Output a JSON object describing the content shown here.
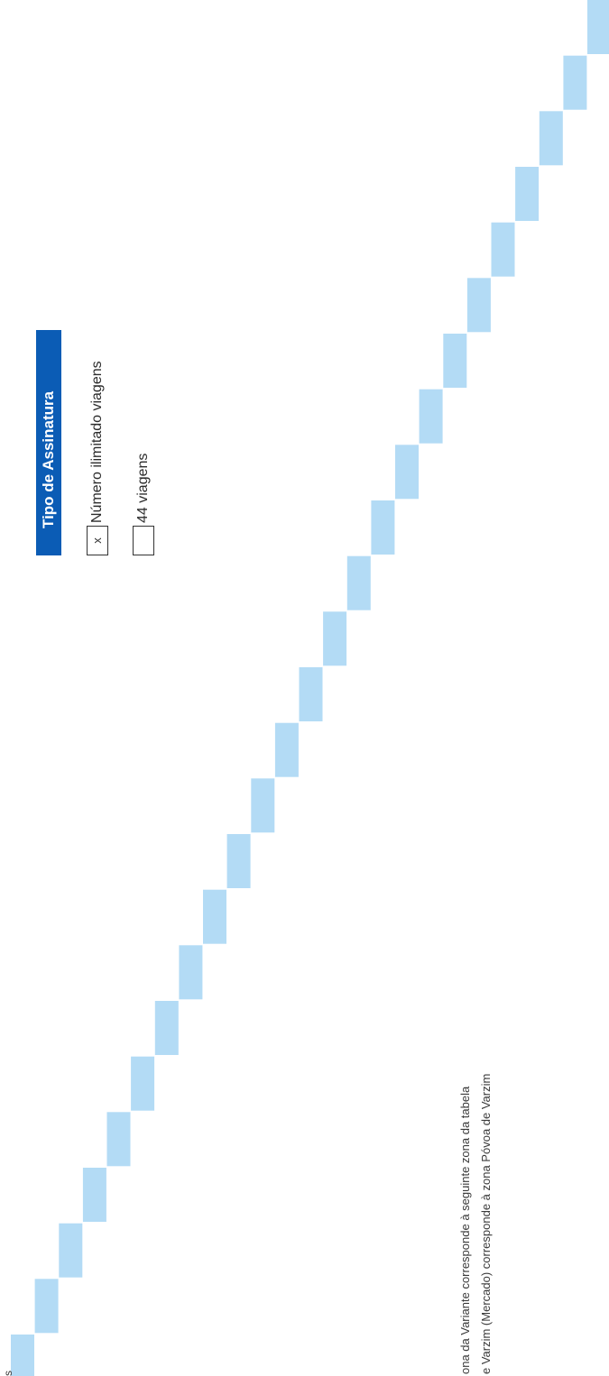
{
  "subscription_type": {
    "header": "Tipo de Assinatura",
    "options": [
      {
        "checked_mark": "x",
        "label": "Número ilimitado viagens"
      },
      {
        "checked_mark": "",
        "label": "44 viagens"
      }
    ]
  },
  "footnotes": {
    "line1": "ona da Variante corresponde à seguinte zona da tabela",
    "line2": "e Varzim (Mercado) corresponde à zona Póvoa de Varzim"
  },
  "corner_fragment": "s",
  "colors": {
    "header_bg": "#0b5cb5",
    "stair_block": "#b3dbf5"
  }
}
